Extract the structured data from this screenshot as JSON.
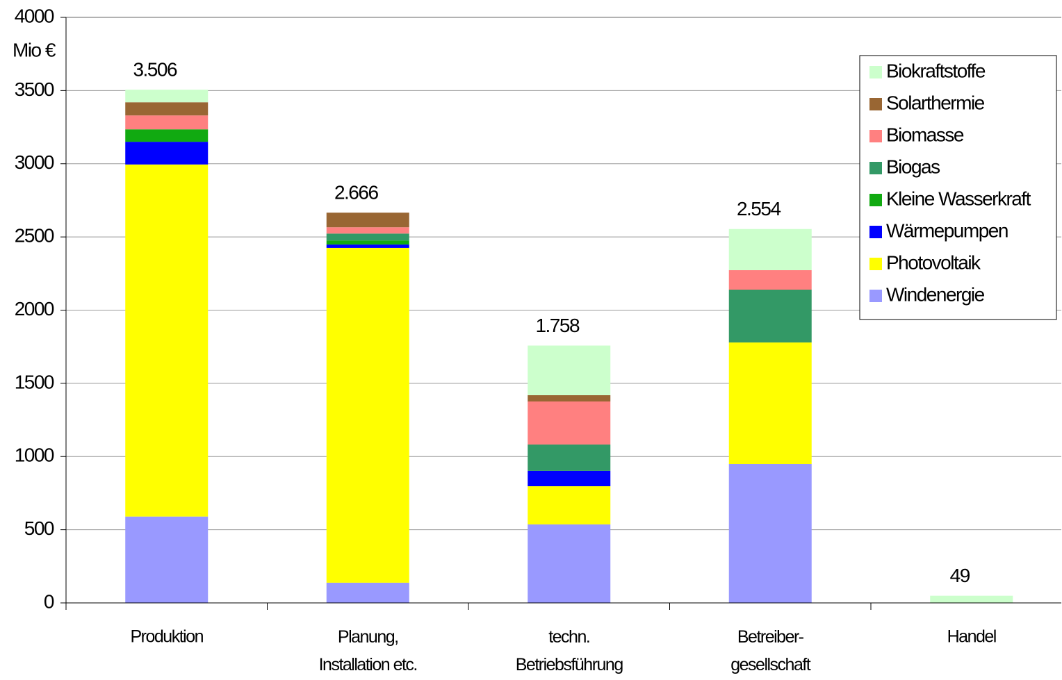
{
  "chart_data": {
    "type": "stacked_bar",
    "y_unit": "Mio €",
    "categories": [
      "Produktion",
      "Planung,\nInstallation etc.",
      "techn.\nBetriebsführung",
      "Betreiber-\ngesellschaft",
      "Handel"
    ],
    "series": [
      {
        "name": "Windenergie",
        "color": "#9999ff",
        "values": [
          590,
          138,
          536,
          949,
          0
        ]
      },
      {
        "name": "Photovoltaik",
        "color": "#ffff00",
        "values": [
          2405,
          2287,
          261,
          830,
          0
        ]
      },
      {
        "name": "Wärmepumpen",
        "color": "#0000ff",
        "values": [
          155,
          23,
          105,
          0,
          0
        ]
      },
      {
        "name": "Kleine Wasserkraft",
        "color": "#11aa11",
        "values": [
          85,
          28,
          0,
          0,
          0
        ]
      },
      {
        "name": "Biogas",
        "color": "#339966",
        "values": [
          0,
          47,
          180,
          361,
          0
        ]
      },
      {
        "name": "Biomasse",
        "color": "#ff8080",
        "values": [
          95,
          43,
          294,
          133,
          0
        ]
      },
      {
        "name": "Solarthermie",
        "color": "#996633",
        "values": [
          90,
          100,
          43,
          0,
          0
        ]
      },
      {
        "name": "Biokraftstoffe",
        "color": "#ccffcc",
        "values": [
          86,
          0,
          339,
          281,
          49
        ]
      }
    ],
    "totals": {
      "values": [
        3506,
        2666,
        1758,
        2554,
        49
      ],
      "value_labels": [
        "3.506",
        "2.666",
        "1.758",
        "2.554",
        "49"
      ]
    },
    "ylim": [
      0,
      4000
    ],
    "yticks": [
      0,
      500,
      1000,
      1500,
      2000,
      2500,
      3000,
      3500,
      4000
    ],
    "grid": true,
    "legend": "upper right"
  }
}
